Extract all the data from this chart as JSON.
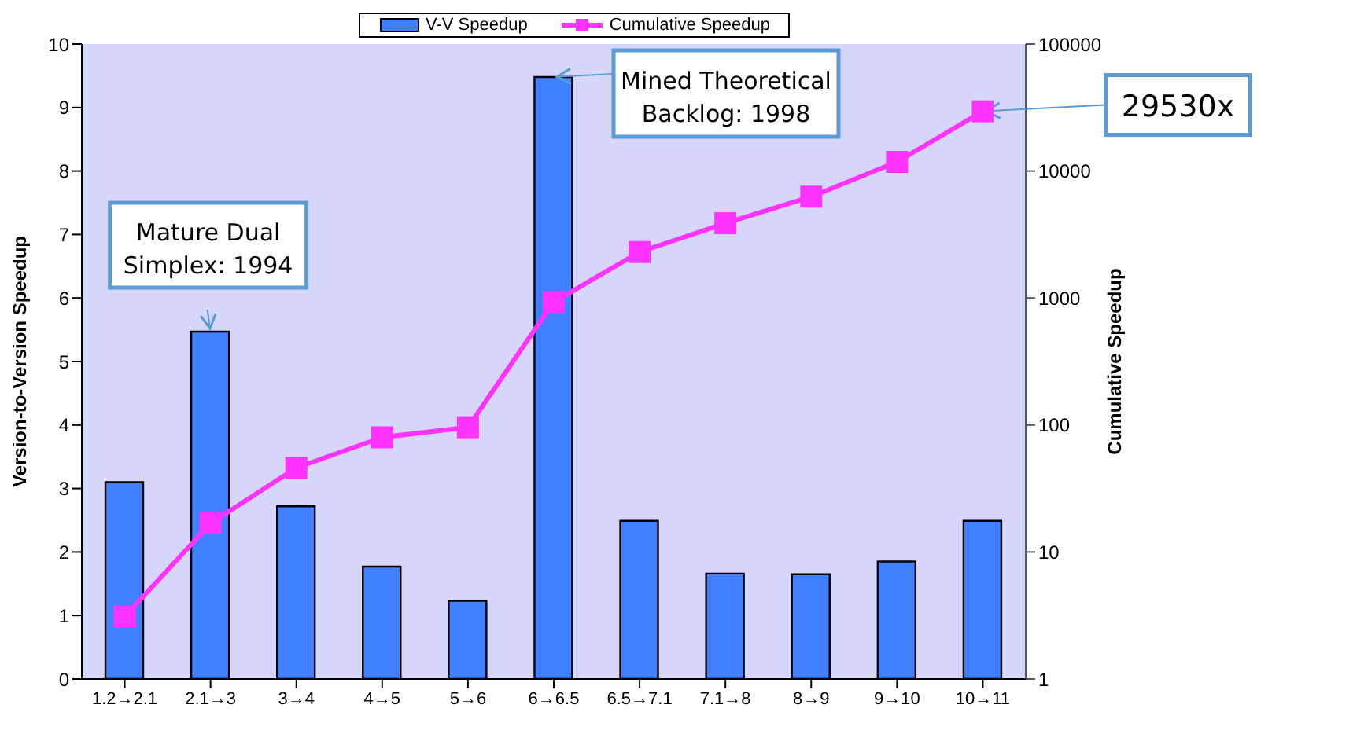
{
  "chart_data": {
    "type": "bar",
    "ylabel": "Version-to-Version Speedup",
    "y2label": "Cumulative Speedup",
    "categories": [
      "1.2→2.1",
      "2.1→3",
      "3→4",
      "4→5",
      "5→6",
      "6→6.5",
      "6.5→7.1",
      "7.1→8",
      "8→9",
      "9→10",
      "10→11"
    ],
    "series": [
      {
        "name": "V-V Speedup",
        "color": "#4080ff",
        "values": [
          3.1,
          5.47,
          2.72,
          1.77,
          1.23,
          9.48,
          2.49,
          1.66,
          1.65,
          1.85,
          2.49
        ]
      },
      {
        "name": "Cumulative Speedup",
        "type": "line",
        "axis": "y2",
        "color": "#ff33ff",
        "marker": "square",
        "values": [
          3.1,
          16.8,
          46,
          80,
          96,
          930,
          2300,
          3880,
          6280,
          11800,
          29530
        ]
      }
    ],
    "ylim": [
      0,
      10
    ],
    "yticks": [
      0,
      1,
      2,
      3,
      4,
      5,
      6,
      7,
      8,
      9,
      10
    ],
    "y2lim": [
      1,
      100000
    ],
    "y2ticks": [
      1,
      10,
      100,
      1000,
      10000,
      100000
    ],
    "log": "y2",
    "grid": false,
    "legend": "top",
    "annotations": [
      {
        "text": "Mature Dual Simplex: 1994",
        "x": "2.1→3",
        "y": 5.47
      },
      {
        "text": "Mined Theoretical Backlog: 1998",
        "x": "6→6.5",
        "y": 9.48
      },
      {
        "text": "29530x",
        "x": "10→11"
      }
    ]
  }
}
